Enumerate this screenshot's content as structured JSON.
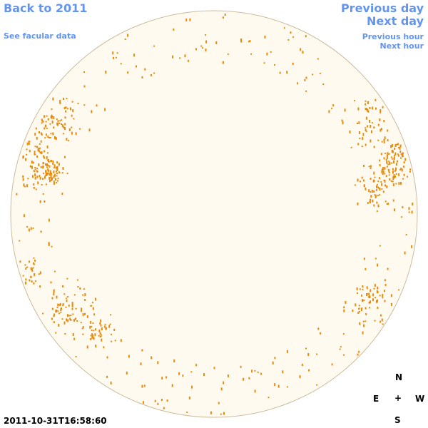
{
  "nav": {
    "back": "Back to 2011",
    "facular": "See facular data",
    "previous_day": "Previous day",
    "next_day": "Next day",
    "previous_hour": "Previous hour",
    "next_hour": "Next hour"
  },
  "timestamp": "2011-10-31T16:58:60",
  "compass": {
    "north": "N",
    "east": "E",
    "center": "+",
    "west": "W",
    "south": "S"
  }
}
